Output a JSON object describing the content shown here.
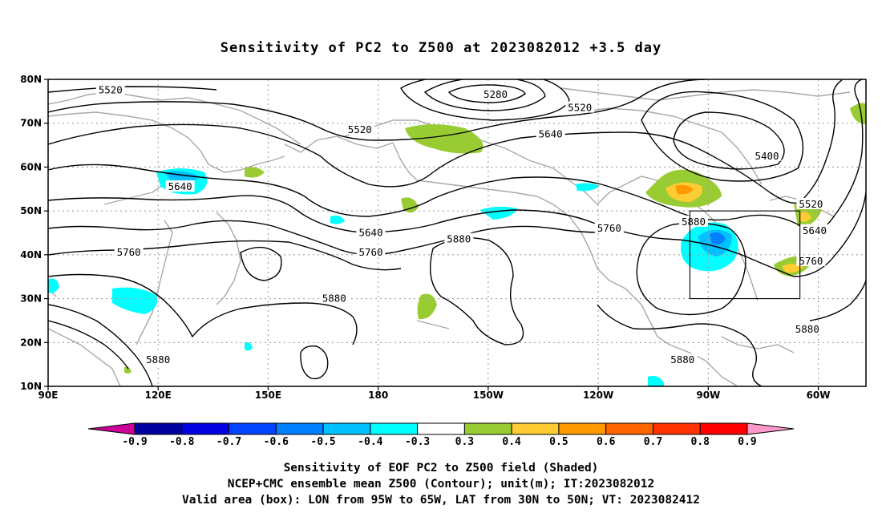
{
  "title": "Sensitivity of PC2 to Z500 at 2023082012 +3.5 day",
  "lat_labels": [
    "80N",
    "70N",
    "60N",
    "50N",
    "40N",
    "30N",
    "20N",
    "10N"
  ],
  "lon_labels": [
    "90E",
    "120E",
    "150E",
    "180",
    "150W",
    "120W",
    "90W",
    "60W"
  ],
  "contour_labels": [
    {
      "text": "5520",
      "lon": 107,
      "lat": 77.5
    },
    {
      "text": "5280",
      "lon": -148,
      "lat": 76.5
    },
    {
      "text": "5520",
      "lon": -125,
      "lat": 73.5
    },
    {
      "text": "5520",
      "lon": 175,
      "lat": 68.5
    },
    {
      "text": "5640",
      "lon": -133,
      "lat": 67.5
    },
    {
      "text": "5400",
      "lon": -74,
      "lat": 62.5
    },
    {
      "text": "5640",
      "lon": 126,
      "lat": 55.5
    },
    {
      "text": "5520",
      "lon": -62,
      "lat": 51.5
    },
    {
      "text": "5880",
      "lon": -94,
      "lat": 47.5
    },
    {
      "text": "5640",
      "lon": -61,
      "lat": 45.5
    },
    {
      "text": "5640",
      "lon": 178,
      "lat": 45
    },
    {
      "text": "5760",
      "lon": -117,
      "lat": 46
    },
    {
      "text": "5880",
      "lon": -158,
      "lat": 43.5
    },
    {
      "text": "5760",
      "lon": 112,
      "lat": 40.5
    },
    {
      "text": "5760",
      "lon": 178,
      "lat": 40.5
    },
    {
      "text": "5760",
      "lon": -62,
      "lat": 38.5
    },
    {
      "text": "5880",
      "lon": 168,
      "lat": 30
    },
    {
      "text": "5880",
      "lon": -63,
      "lat": 23
    },
    {
      "text": "5880",
      "lon": -97,
      "lat": 16
    },
    {
      "text": "5880",
      "lon": 120,
      "lat": 16
    }
  ],
  "colorbar": {
    "levels": [
      "-0.9",
      "-0.8",
      "-0.7",
      "-0.6",
      "-0.5",
      "-0.4",
      "-0.3",
      "0.3",
      "0.4",
      "0.5",
      "0.6",
      "0.7",
      "0.8",
      "0.9"
    ],
    "colors": [
      "#cc0099",
      "#0000a0",
      "#0000e0",
      "#0044ff",
      "#0080ff",
      "#00c0ff",
      "#00ffff",
      "#ffffff",
      "#99cc33",
      "#ffcc33",
      "#ff9900",
      "#ff6600",
      "#ff3300",
      "#ff0000",
      "#ff99cc"
    ]
  },
  "box": {
    "lon_min": -95,
    "lon_max": -65,
    "lat_min": 30,
    "lat_max": 50
  },
  "captions": [
    "Sensitivity of EOF PC2 to Z500 field (Shaded)",
    "NCEP+CMC ensemble mean Z500 (Contour); unit(m); IT:2023082012",
    "Valid area (box): LON from 95W to 65W, LAT from 30N to 50N; VT: 2023082412"
  ]
}
